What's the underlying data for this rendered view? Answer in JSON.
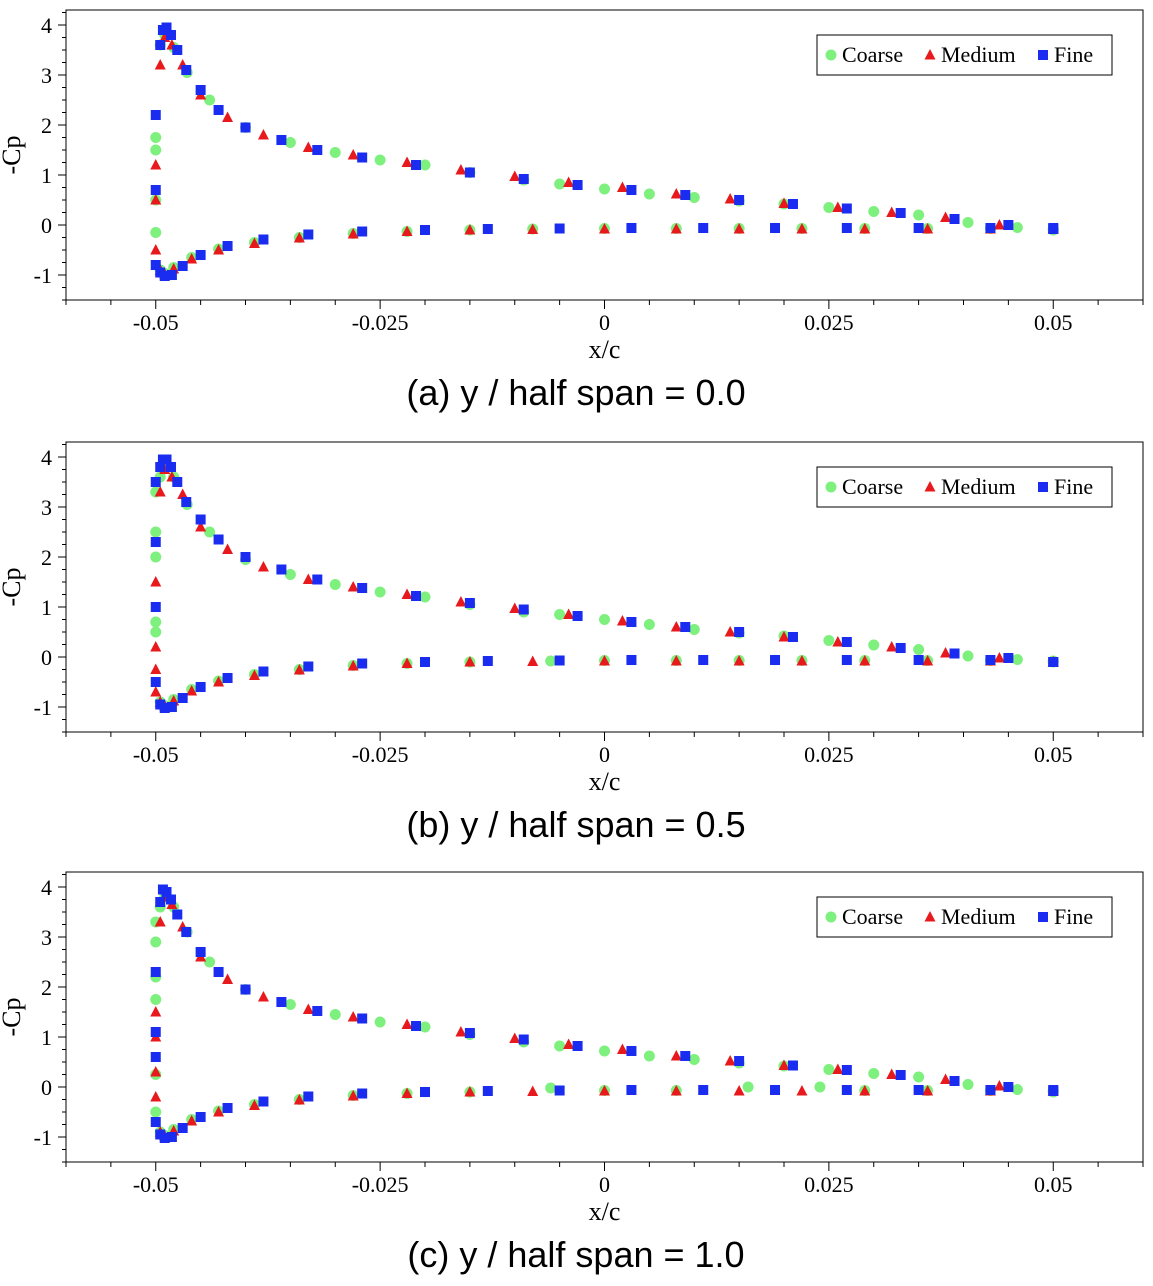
{
  "chart_data": [
    {
      "type": "scatter",
      "caption": "(a) y / half span = 0.0",
      "xlabel": "x/c",
      "ylabel": "-Cp",
      "xlim": [
        -0.06,
        0.06
      ],
      "ylim": [
        -1.5,
        4.3
      ],
      "xticks": [
        -0.05,
        -0.025,
        0,
        0.025,
        0.05
      ],
      "xtick_labels": [
        "-0.05",
        "-0.025",
        "0",
        "0.025",
        "0.05"
      ],
      "yticks": [
        -1,
        0,
        1,
        2,
        3,
        4
      ],
      "ytick_labels": [
        "-1",
        "0",
        "1",
        "2",
        "3",
        "4"
      ],
      "legend": [
        "Coarse",
        "Medium",
        "Fine"
      ],
      "series": [
        {
          "name": "Coarse",
          "marker": "circle",
          "color": "#7ef07e",
          "x": [
            -0.05,
            -0.05,
            -0.05,
            -0.05,
            -0.0495,
            -0.049,
            -0.048,
            -0.0465,
            -0.044,
            -0.04,
            -0.035,
            -0.03,
            -0.025,
            -0.02,
            -0.015,
            -0.009,
            -0.005,
            0,
            0.005,
            0.01,
            0.015,
            0.02,
            0.025,
            0.03,
            0.035,
            0.0405,
            0.046,
            0.05,
            -0.0495,
            -0.049,
            -0.048,
            -0.046,
            -0.043,
            -0.039,
            -0.034,
            -0.028,
            -0.022,
            -0.015,
            -0.008,
            0,
            0.008,
            0.015,
            0.022,
            0.029,
            0.036,
            0.043,
            0.05
          ],
          "y": [
            1.5,
            1.75,
            -0.15,
            0.5,
            3.6,
            3.8,
            3.55,
            3.05,
            2.5,
            1.95,
            1.65,
            1.45,
            1.3,
            1.2,
            1.05,
            0.9,
            0.82,
            0.72,
            0.62,
            0.55,
            0.48,
            0.42,
            0.35,
            0.27,
            0.2,
            0.05,
            -0.05,
            -0.1,
            -0.9,
            -0.97,
            -0.85,
            -0.65,
            -0.48,
            -0.35,
            -0.25,
            -0.17,
            -0.13,
            -0.1,
            -0.08,
            -0.07,
            -0.07,
            -0.07,
            -0.07,
            -0.07,
            -0.07,
            -0.07,
            -0.08
          ]
        },
        {
          "name": "Medium",
          "marker": "triangle",
          "color": "#e8191c",
          "x": [
            -0.05,
            -0.05,
            -0.05,
            -0.0495,
            -0.049,
            -0.0482,
            -0.047,
            -0.045,
            -0.042,
            -0.038,
            -0.033,
            -0.028,
            -0.022,
            -0.016,
            -0.01,
            -0.004,
            0.002,
            0.008,
            0.014,
            0.02,
            0.026,
            0.032,
            0.038,
            0.044,
            0.05,
            -0.0495,
            -0.049,
            -0.048,
            -0.046,
            -0.043,
            -0.039,
            -0.034,
            -0.028,
            -0.022,
            -0.015,
            -0.008,
            0,
            0.008,
            0.015,
            0.022,
            0.029,
            0.036,
            0.043,
            0.05
          ],
          "y": [
            1.2,
            0.5,
            -0.5,
            3.2,
            3.75,
            3.6,
            3.2,
            2.6,
            2.15,
            1.8,
            1.55,
            1.4,
            1.25,
            1.1,
            0.97,
            0.85,
            0.75,
            0.62,
            0.52,
            0.43,
            0.35,
            0.25,
            0.15,
            0.0,
            -0.08,
            -0.9,
            -0.98,
            -0.88,
            -0.68,
            -0.5,
            -0.37,
            -0.26,
            -0.18,
            -0.13,
            -0.1,
            -0.09,
            -0.08,
            -0.08,
            -0.08,
            -0.08,
            -0.08,
            -0.08,
            -0.08,
            -0.08
          ]
        },
        {
          "name": "Fine",
          "marker": "square",
          "color": "#1a2cf0",
          "x": [
            -0.05,
            -0.05,
            -0.05,
            -0.0495,
            -0.0492,
            -0.0488,
            -0.0483,
            -0.0476,
            -0.0466,
            -0.045,
            -0.043,
            -0.04,
            -0.036,
            -0.032,
            -0.027,
            -0.021,
            -0.015,
            -0.009,
            -0.003,
            0.003,
            0.009,
            0.015,
            0.021,
            0.027,
            0.033,
            0.039,
            0.045,
            0.05,
            -0.0495,
            -0.049,
            -0.0482,
            -0.047,
            -0.045,
            -0.042,
            -0.038,
            -0.033,
            -0.027,
            -0.02,
            -0.013,
            -0.005,
            0.003,
            0.011,
            0.019,
            0.027,
            0.035,
            0.043,
            0.05
          ],
          "y": [
            2.2,
            0.7,
            -0.8,
            3.6,
            3.9,
            3.95,
            3.8,
            3.5,
            3.1,
            2.7,
            2.3,
            1.95,
            1.7,
            1.5,
            1.35,
            1.2,
            1.05,
            0.92,
            0.8,
            0.7,
            0.6,
            0.5,
            0.42,
            0.33,
            0.24,
            0.12,
            0.0,
            -0.08,
            -0.95,
            -1.02,
            -1.0,
            -0.82,
            -0.6,
            -0.42,
            -0.29,
            -0.19,
            -0.13,
            -0.1,
            -0.08,
            -0.07,
            -0.06,
            -0.06,
            -0.06,
            -0.06,
            -0.06,
            -0.06,
            -0.06
          ]
        }
      ]
    },
    {
      "type": "scatter",
      "caption": "(b) y / half span = 0.5",
      "xlabel": "x/c",
      "ylabel": "-Cp",
      "xlim": [
        -0.06,
        0.06
      ],
      "ylim": [
        -1.5,
        4.3
      ],
      "xticks": [
        -0.05,
        -0.025,
        0,
        0.025,
        0.05
      ],
      "xtick_labels": [
        "-0.05",
        "-0.025",
        "0",
        "0.025",
        "0.05"
      ],
      "yticks": [
        -1,
        0,
        1,
        2,
        3,
        4
      ],
      "ytick_labels": [
        "-1",
        "0",
        "1",
        "2",
        "3",
        "4"
      ],
      "legend": [
        "Coarse",
        "Medium",
        "Fine"
      ],
      "series": [
        {
          "name": "Coarse",
          "marker": "circle",
          "color": "#7ef07e",
          "x": [
            -0.05,
            -0.05,
            -0.05,
            -0.05,
            -0.05,
            -0.0495,
            -0.049,
            -0.048,
            -0.0465,
            -0.044,
            -0.04,
            -0.035,
            -0.03,
            -0.025,
            -0.02,
            -0.015,
            -0.009,
            -0.005,
            0,
            0.005,
            0.01,
            0.015,
            0.02,
            0.025,
            0.03,
            0.035,
            0.0405,
            0.046,
            0.05,
            -0.0495,
            -0.049,
            -0.048,
            -0.046,
            -0.043,
            -0.039,
            -0.034,
            -0.028,
            -0.022,
            -0.015,
            -0.006,
            0,
            0.008,
            0.015,
            0.022,
            0.029,
            0.036,
            0.043,
            0.05
          ],
          "y": [
            3.3,
            2.5,
            2.0,
            0.7,
            0.5,
            3.6,
            3.8,
            3.6,
            3.05,
            2.5,
            1.95,
            1.65,
            1.45,
            1.3,
            1.2,
            1.05,
            0.9,
            0.85,
            0.75,
            0.65,
            0.55,
            0.48,
            0.42,
            0.33,
            0.24,
            0.15,
            0.02,
            -0.05,
            -0.1,
            -0.9,
            -0.97,
            -0.85,
            -0.65,
            -0.48,
            -0.35,
            -0.25,
            -0.17,
            -0.13,
            -0.1,
            -0.08,
            -0.07,
            -0.07,
            -0.07,
            -0.07,
            -0.07,
            -0.07,
            -0.07,
            -0.08
          ]
        },
        {
          "name": "Medium",
          "marker": "triangle",
          "color": "#e8191c",
          "x": [
            -0.05,
            -0.05,
            -0.05,
            -0.05,
            -0.0495,
            -0.049,
            -0.0482,
            -0.047,
            -0.045,
            -0.042,
            -0.038,
            -0.033,
            -0.028,
            -0.022,
            -0.016,
            -0.01,
            -0.004,
            0.002,
            0.008,
            0.014,
            0.02,
            0.026,
            0.032,
            0.038,
            0.044,
            0.05,
            -0.0495,
            -0.049,
            -0.048,
            -0.046,
            -0.043,
            -0.039,
            -0.034,
            -0.028,
            -0.022,
            -0.015,
            -0.008,
            0,
            0.008,
            0.015,
            0.022,
            0.029,
            0.036,
            0.043,
            0.05
          ],
          "y": [
            1.5,
            0.2,
            -0.25,
            -0.7,
            3.3,
            3.75,
            3.6,
            3.25,
            2.6,
            2.15,
            1.8,
            1.55,
            1.4,
            1.25,
            1.1,
            0.97,
            0.85,
            0.72,
            0.6,
            0.5,
            0.4,
            0.3,
            0.2,
            0.08,
            -0.02,
            -0.1,
            -0.9,
            -0.98,
            -0.88,
            -0.68,
            -0.5,
            -0.37,
            -0.26,
            -0.18,
            -0.13,
            -0.1,
            -0.09,
            -0.08,
            -0.08,
            -0.08,
            -0.08,
            -0.08,
            -0.08,
            -0.08,
            -0.1
          ]
        },
        {
          "name": "Fine",
          "marker": "square",
          "color": "#1a2cf0",
          "x": [
            -0.05,
            -0.05,
            -0.05,
            -0.05,
            -0.0495,
            -0.0492,
            -0.0488,
            -0.0483,
            -0.0476,
            -0.0466,
            -0.045,
            -0.043,
            -0.04,
            -0.036,
            -0.032,
            -0.027,
            -0.021,
            -0.015,
            -0.009,
            -0.003,
            0.003,
            0.009,
            0.015,
            0.021,
            0.027,
            0.033,
            0.039,
            0.045,
            0.05,
            -0.0495,
            -0.049,
            -0.0482,
            -0.047,
            -0.045,
            -0.042,
            -0.038,
            -0.033,
            -0.027,
            -0.02,
            -0.013,
            -0.005,
            0.003,
            0.011,
            0.019,
            0.027,
            0.035,
            0.043,
            0.05
          ],
          "y": [
            3.5,
            2.3,
            1.0,
            -0.5,
            3.8,
            3.95,
            3.95,
            3.8,
            3.5,
            3.1,
            2.75,
            2.35,
            2.0,
            1.75,
            1.55,
            1.38,
            1.22,
            1.08,
            0.95,
            0.82,
            0.7,
            0.6,
            0.5,
            0.4,
            0.3,
            0.18,
            0.07,
            -0.02,
            -0.1,
            -0.95,
            -1.02,
            -1.0,
            -0.82,
            -0.6,
            -0.42,
            -0.29,
            -0.19,
            -0.13,
            -0.1,
            -0.08,
            -0.07,
            -0.06,
            -0.06,
            -0.06,
            -0.06,
            -0.06,
            -0.06,
            -0.1
          ]
        }
      ]
    },
    {
      "type": "scatter",
      "caption": "(c) y / half span = 1.0",
      "xlabel": "x/c",
      "ylabel": "-Cp",
      "xlim": [
        -0.06,
        0.06
      ],
      "ylim": [
        -1.5,
        4.3
      ],
      "xticks": [
        -0.05,
        -0.025,
        0,
        0.025,
        0.05
      ],
      "xtick_labels": [
        "-0.05",
        "-0.025",
        "0",
        "0.025",
        "0.05"
      ],
      "yticks": [
        -1,
        0,
        1,
        2,
        3,
        4
      ],
      "ytick_labels": [
        "-1",
        "0",
        "1",
        "2",
        "3",
        "4"
      ],
      "legend": [
        "Coarse",
        "Medium",
        "Fine"
      ],
      "series": [
        {
          "name": "Coarse",
          "marker": "circle",
          "color": "#7ef07e",
          "x": [
            -0.05,
            -0.05,
            -0.05,
            -0.05,
            -0.05,
            -0.05,
            -0.0495,
            -0.049,
            -0.048,
            -0.0465,
            -0.044,
            -0.04,
            -0.035,
            -0.03,
            -0.025,
            -0.02,
            -0.015,
            -0.009,
            -0.005,
            0,
            0.005,
            0.01,
            0.015,
            0.02,
            0.025,
            0.03,
            0.035,
            0.0405,
            0.046,
            0.05,
            -0.0495,
            -0.049,
            -0.048,
            -0.046,
            -0.043,
            -0.039,
            -0.034,
            -0.028,
            -0.022,
            -0.015,
            -0.006,
            0,
            0.008,
            0.016,
            0.024,
            0.029,
            0.036,
            0.043,
            0.05
          ],
          "y": [
            3.3,
            2.9,
            2.2,
            1.75,
            0.25,
            -0.5,
            3.6,
            3.8,
            3.6,
            3.1,
            2.5,
            1.95,
            1.65,
            1.45,
            1.3,
            1.2,
            1.05,
            0.9,
            0.82,
            0.72,
            0.62,
            0.55,
            0.48,
            0.42,
            0.35,
            0.27,
            0.2,
            0.05,
            -0.05,
            -0.1,
            -0.9,
            -0.97,
            -0.85,
            -0.65,
            -0.48,
            -0.35,
            -0.25,
            -0.17,
            -0.13,
            -0.1,
            -0.02,
            -0.07,
            -0.07,
            0.0,
            0.0,
            -0.07,
            -0.07,
            -0.07,
            -0.08
          ]
        },
        {
          "name": "Medium",
          "marker": "triangle",
          "color": "#e8191c",
          "x": [
            -0.05,
            -0.05,
            -0.05,
            -0.05,
            -0.0495,
            -0.049,
            -0.0482,
            -0.047,
            -0.045,
            -0.042,
            -0.038,
            -0.033,
            -0.028,
            -0.022,
            -0.016,
            -0.01,
            -0.004,
            0.002,
            0.008,
            0.014,
            0.02,
            0.026,
            0.032,
            0.038,
            0.044,
            0.05,
            -0.0495,
            -0.049,
            -0.048,
            -0.046,
            -0.043,
            -0.039,
            -0.034,
            -0.028,
            -0.022,
            -0.015,
            -0.008,
            0,
            0.008,
            0.015,
            0.022,
            0.029,
            0.036,
            0.043,
            0.05
          ],
          "y": [
            1.5,
            1.0,
            0.3,
            -0.2,
            3.3,
            3.8,
            3.65,
            3.2,
            2.6,
            2.15,
            1.8,
            1.55,
            1.4,
            1.25,
            1.1,
            0.97,
            0.85,
            0.75,
            0.62,
            0.52,
            0.43,
            0.35,
            0.25,
            0.15,
            0.02,
            -0.08,
            -0.9,
            -0.98,
            -0.88,
            -0.68,
            -0.5,
            -0.37,
            -0.26,
            -0.18,
            -0.13,
            -0.1,
            -0.09,
            -0.08,
            -0.08,
            -0.08,
            -0.08,
            -0.08,
            -0.08,
            -0.08,
            -0.08
          ]
        },
        {
          "name": "Fine",
          "marker": "square",
          "color": "#1a2cf0",
          "x": [
            -0.05,
            -0.05,
            -0.05,
            -0.05,
            -0.0495,
            -0.0492,
            -0.0488,
            -0.0483,
            -0.0476,
            -0.0466,
            -0.045,
            -0.043,
            -0.04,
            -0.036,
            -0.032,
            -0.027,
            -0.021,
            -0.015,
            -0.009,
            -0.003,
            0.003,
            0.009,
            0.015,
            0.021,
            0.027,
            0.033,
            0.039,
            0.045,
            0.05,
            -0.0495,
            -0.049,
            -0.0482,
            -0.047,
            -0.045,
            -0.042,
            -0.038,
            -0.033,
            -0.027,
            -0.02,
            -0.013,
            -0.005,
            0.003,
            0.011,
            0.019,
            0.027,
            0.035,
            0.043,
            0.05
          ],
          "y": [
            2.3,
            1.1,
            0.6,
            -0.7,
            3.7,
            3.95,
            3.9,
            3.75,
            3.45,
            3.1,
            2.7,
            2.3,
            1.95,
            1.7,
            1.52,
            1.37,
            1.22,
            1.08,
            0.95,
            0.82,
            0.72,
            0.62,
            0.52,
            0.43,
            0.34,
            0.24,
            0.12,
            0.0,
            -0.08,
            -0.95,
            -1.02,
            -1.0,
            -0.82,
            -0.6,
            -0.42,
            -0.29,
            -0.19,
            -0.13,
            -0.1,
            -0.08,
            -0.07,
            -0.06,
            -0.06,
            -0.06,
            -0.06,
            -0.06,
            -0.06,
            -0.06
          ]
        }
      ]
    }
  ]
}
